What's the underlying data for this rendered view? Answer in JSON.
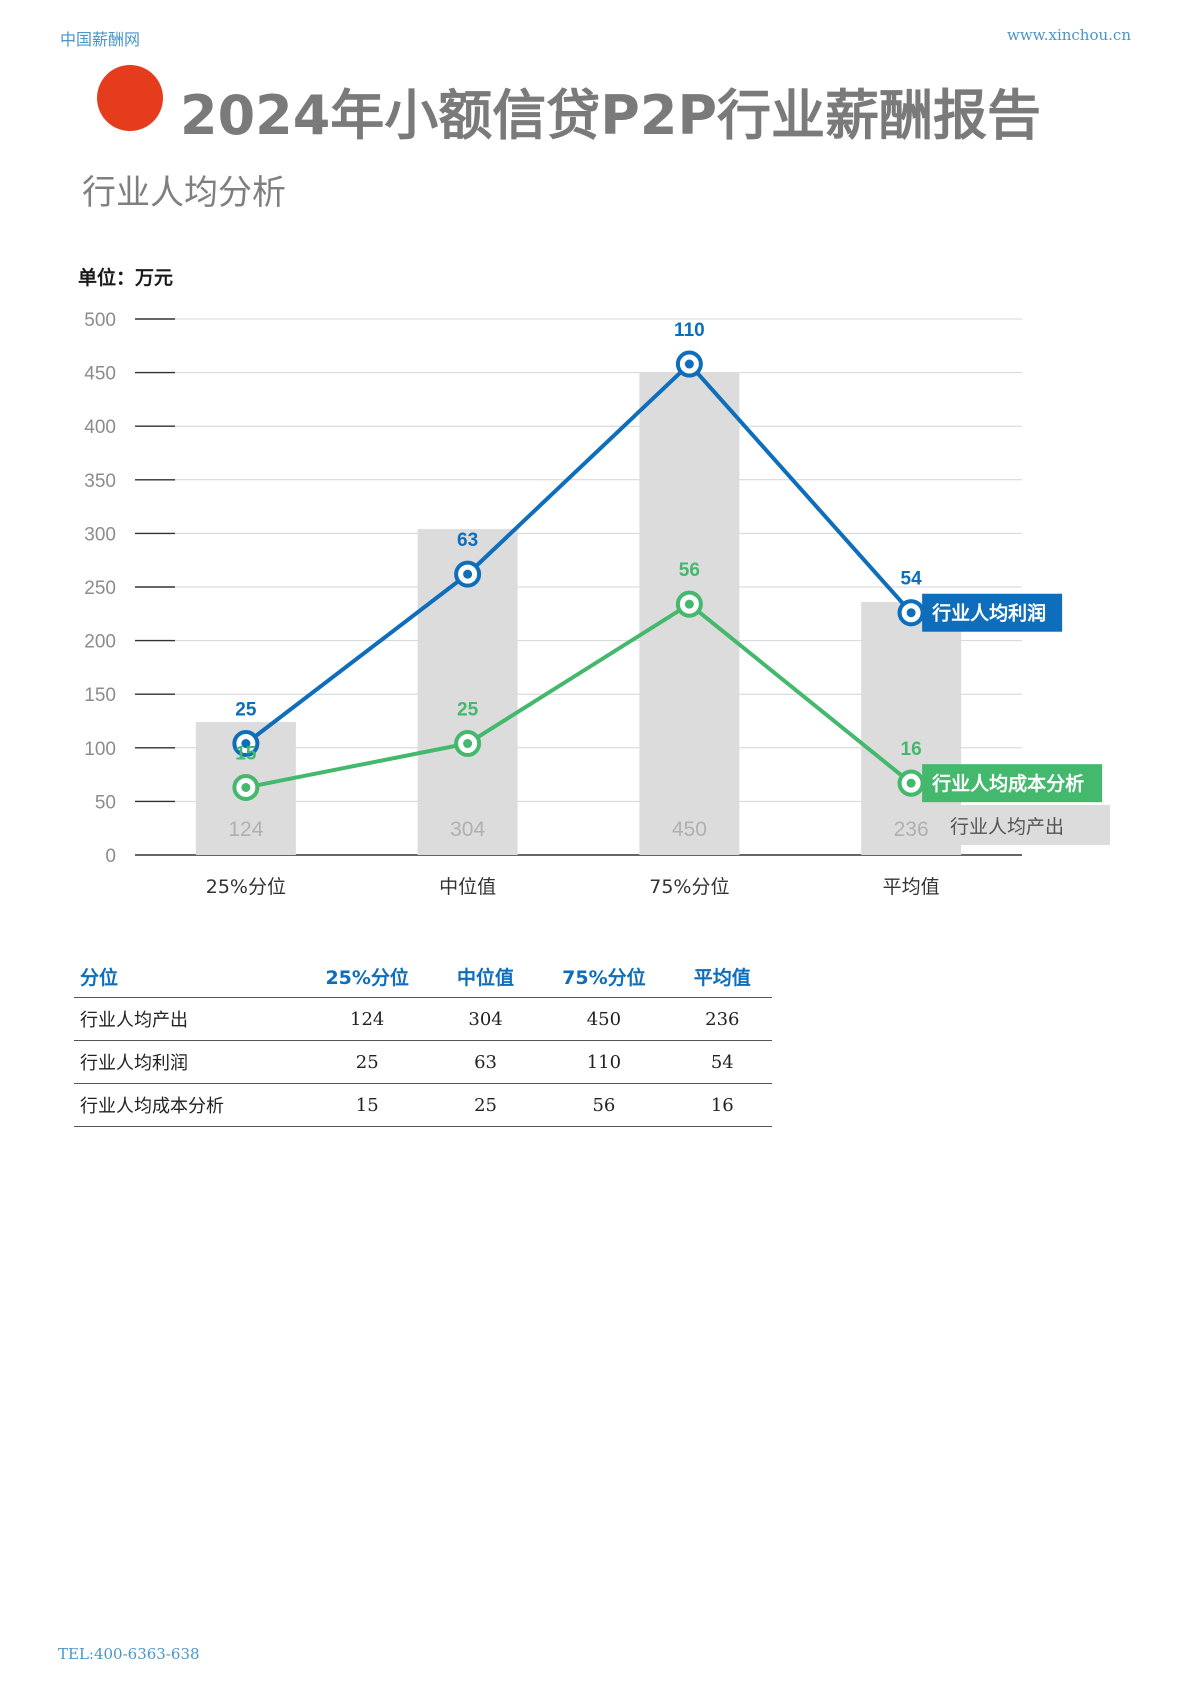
{
  "header": {
    "site_name": "中国薪酬网",
    "url": "www.xinchou.cn"
  },
  "title": "2024年小额信贷P2P行业薪酬报告",
  "subtitle": "行业人均分析",
  "unit_label": "单位：万元",
  "chart_data": {
    "type": "bar+line",
    "categories": [
      "25%分位",
      "中位值",
      "75%分位",
      "平均值"
    ],
    "ylim": [
      0,
      500
    ],
    "y_ticks": [
      0,
      50,
      100,
      150,
      200,
      250,
      300,
      350,
      400,
      450,
      500
    ],
    "grid": true,
    "bar_series": {
      "name": "行业人均产出",
      "values": [
        124,
        304,
        450,
        236
      ],
      "color": "#dcdcdc",
      "label_color": "#b0b0b0"
    },
    "line_series": [
      {
        "name": "行业人均利润",
        "labels": [
          25,
          63,
          110,
          54
        ],
        "plotted_values": [
          104,
          262,
          458,
          226
        ],
        "color": "#0e6ebb"
      },
      {
        "name": "行业人均成本分析",
        "labels": [
          15,
          25,
          56,
          16
        ],
        "plotted_values": [
          63,
          104,
          234,
          67
        ],
        "color": "#44b86c"
      }
    ],
    "legend_position": "right"
  },
  "table": {
    "headers": [
      "分位",
      "25%分位",
      "中位值",
      "75%分位",
      "平均值"
    ],
    "rows": [
      [
        "行业人均产出",
        "124",
        "304",
        "450",
        "236"
      ],
      [
        "行业人均利润",
        "25",
        "63",
        "110",
        "54"
      ],
      [
        "行业人均成本分析",
        "15",
        "25",
        "56",
        "16"
      ]
    ]
  },
  "footer": {
    "tel": "TEL:400-6363-638"
  }
}
